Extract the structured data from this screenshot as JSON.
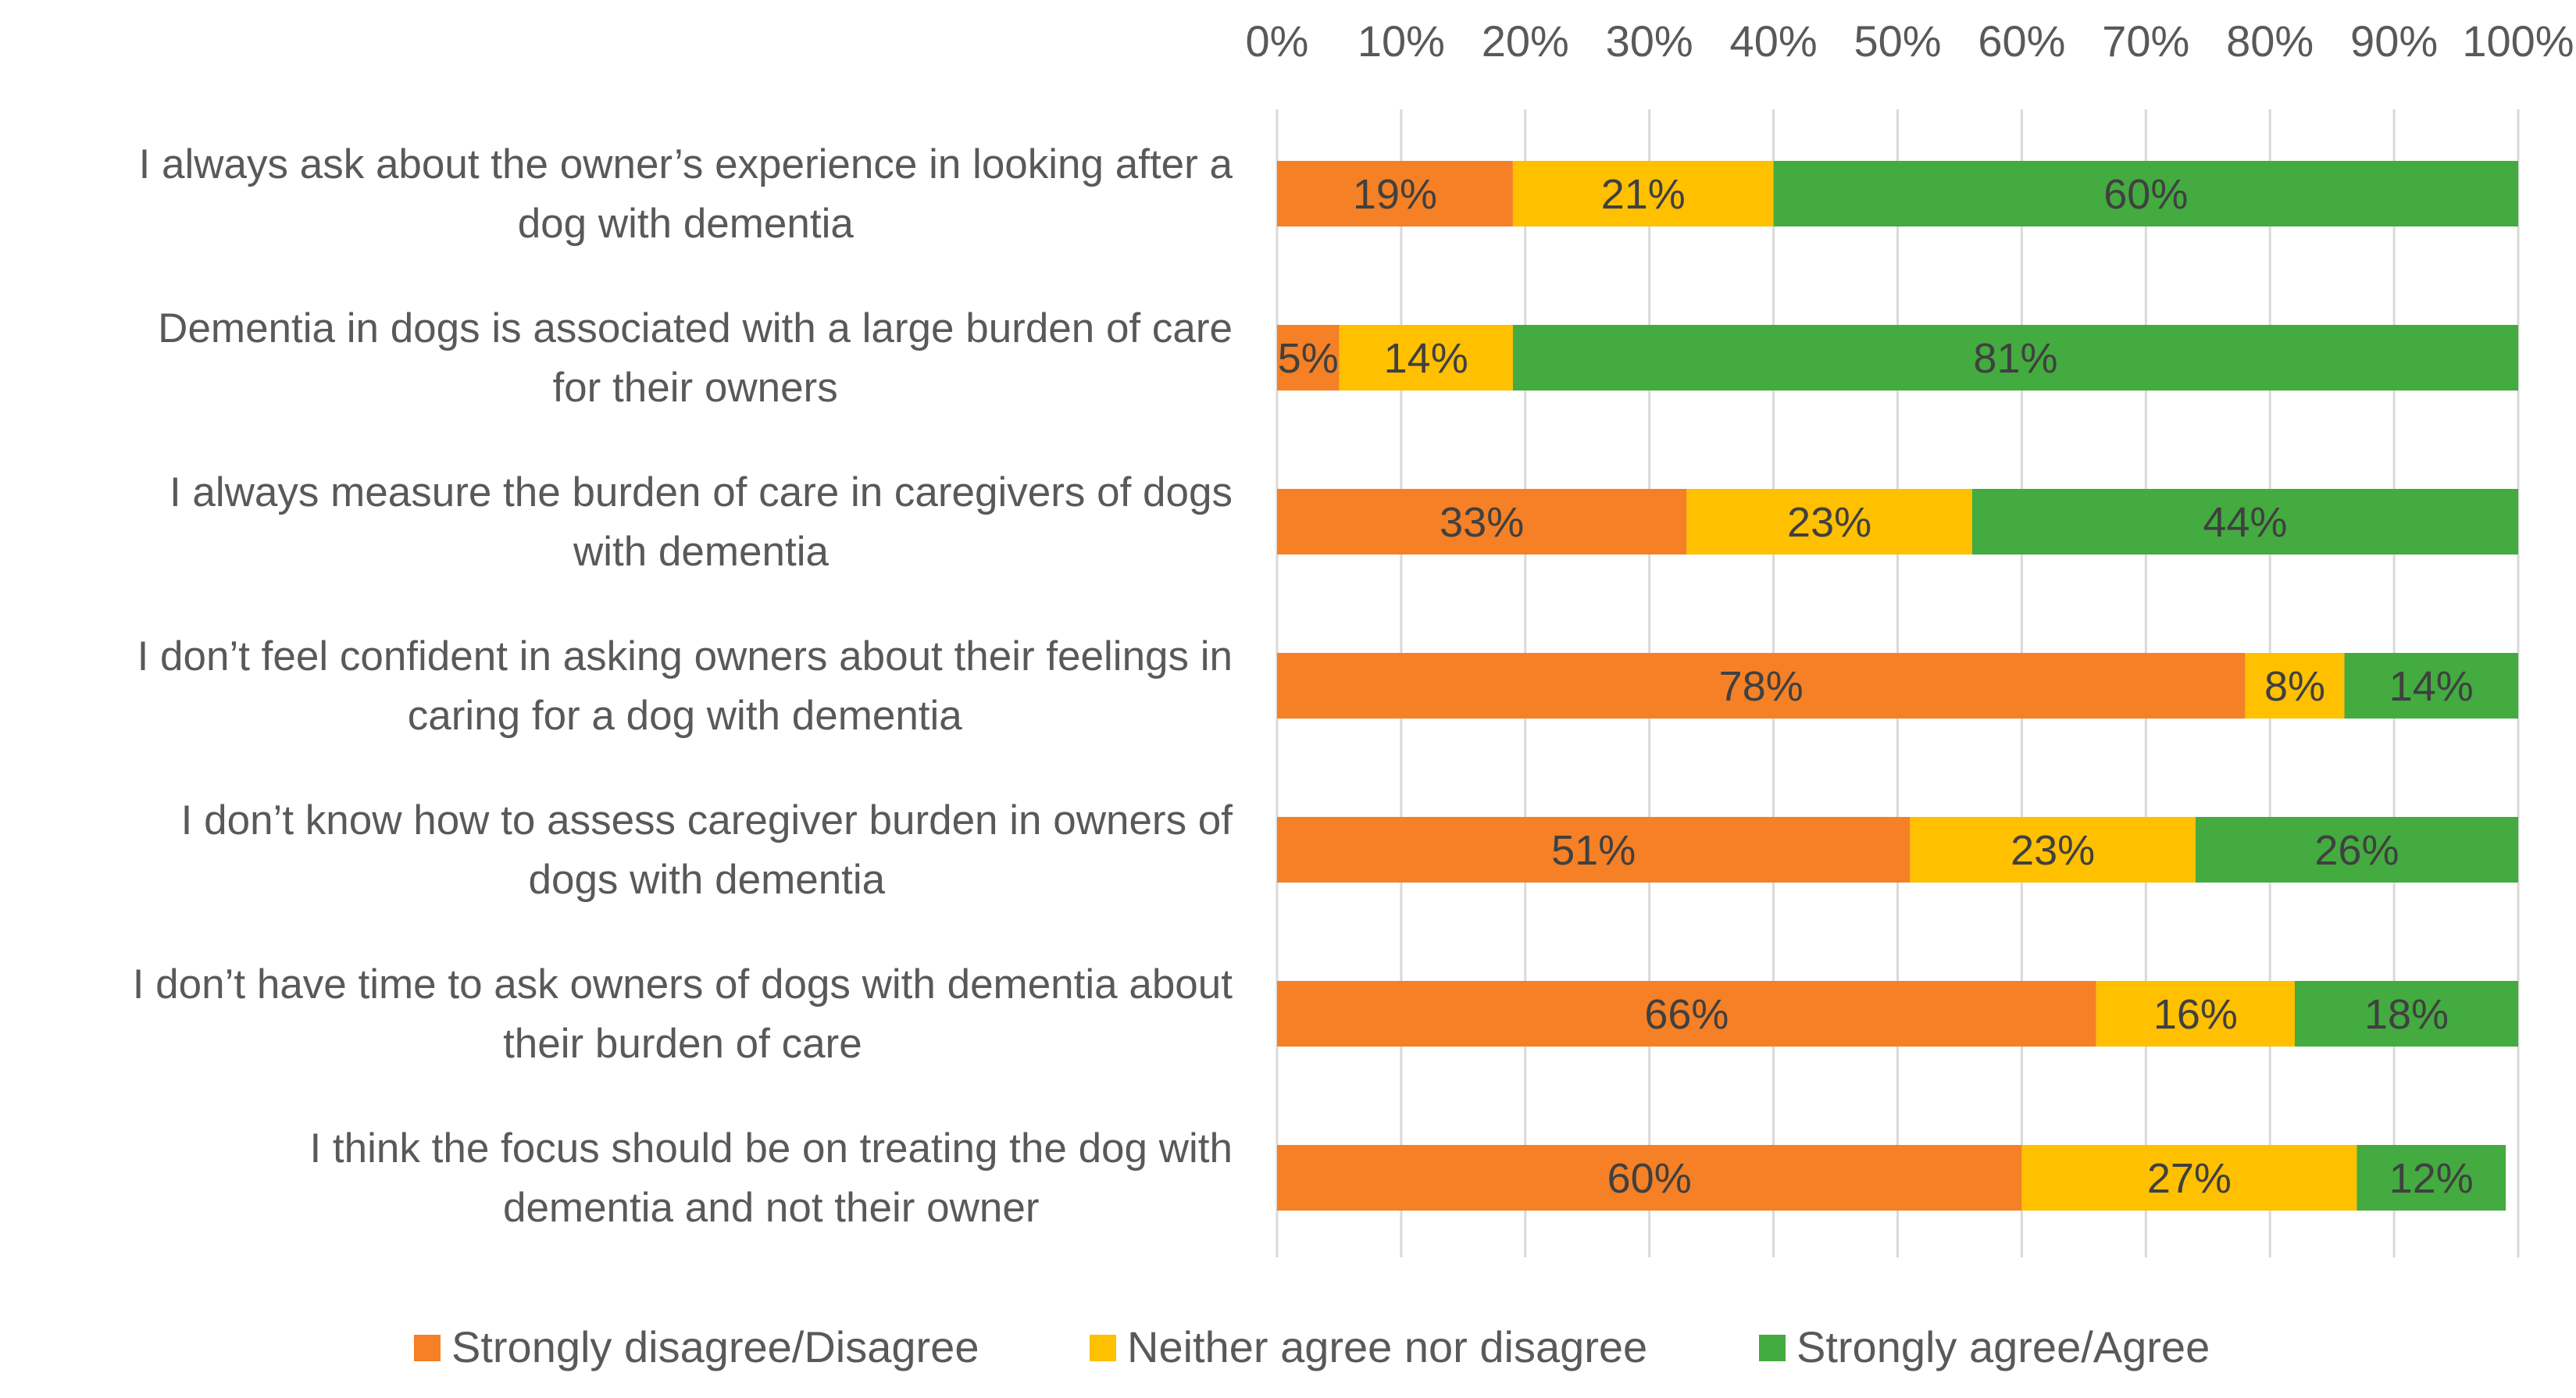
{
  "chart_data": {
    "type": "bar",
    "orientation": "horizontal",
    "stacked": "percent",
    "title": "",
    "xlabel": "",
    "ylabel": "",
    "xlim": [
      0,
      100
    ],
    "x_ticks": [
      "0%",
      "10%",
      "20%",
      "30%",
      "40%",
      "50%",
      "60%",
      "70%",
      "80%",
      "90%",
      "100%"
    ],
    "x_axis_position": "top",
    "grid": true,
    "legend_position": "bottom",
    "categories": [
      "I always ask about the owner’s experience in looking after a dog with dementia",
      "Dementia in dogs is associated with a large burden of care for their owners",
      "I always measure the burden of care in caregivers of dogs with dementia",
      "I don’t feel confident in asking owners about their feelings in caring for a dog with dementia",
      "I don’t know how to assess caregiver burden in owners of dogs with dementia",
      "I don’t have time to ask owners of dogs with dementia about their burden of care",
      "I think the focus should be on treating the dog with dementia and not their owner"
    ],
    "category_lines": [
      [
        "I always ask about the owner’s experience in looking after a",
        "dog with dementia"
      ],
      [
        "Dementia in dogs is associated with a large burden of care",
        "for their owners"
      ],
      [
        "I always measure the burden of care in caregivers of dogs",
        "with dementia"
      ],
      [
        "I don’t feel confident in asking owners about their feelings in",
        "caring for a dog with dementia"
      ],
      [
        "I don’t know how to assess caregiver burden in owners of",
        "dogs with dementia"
      ],
      [
        "I don’t have time to ask owners of dogs with dementia about",
        "their burden of care"
      ],
      [
        "I think the focus should be on treating the dog with",
        "dementia and not their owner"
      ]
    ],
    "series": [
      {
        "name": "Strongly disagree/Disagree",
        "color": "#F58025",
        "values": [
          19,
          5,
          33,
          78,
          51,
          66,
          60
        ],
        "labels": [
          "19%",
          "5%",
          "33%",
          "78%",
          "51%",
          "66%",
          "60%"
        ]
      },
      {
        "name": "Neither agree nor disagree",
        "color": "#FFC000",
        "values": [
          21,
          14,
          23,
          8,
          23,
          16,
          27
        ],
        "labels": [
          "21%",
          "14%",
          "23%",
          "8%",
          "23%",
          "16%",
          "27%"
        ]
      },
      {
        "name": "Strongly agree/Agree",
        "color": "#43AB3F",
        "values": [
          60,
          81,
          44,
          14,
          26,
          18,
          12
        ],
        "labels": [
          "60%",
          "81%",
          "44%",
          "14%",
          "26%",
          "18%",
          "12%"
        ]
      }
    ]
  }
}
